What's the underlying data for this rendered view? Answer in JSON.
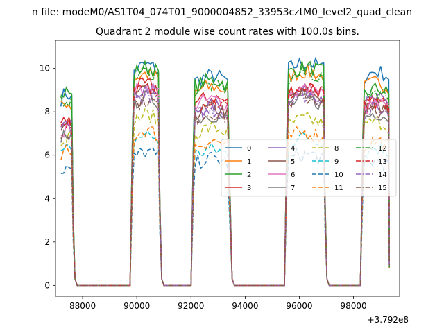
{
  "suptitle": "n file: modeM0/AS1T04_074T01_9000004852_33953cztM0_level2_quad_clean",
  "chart_data": {
    "type": "line",
    "title": "Quadrant 2 module wise count rates with 100.0s bins.",
    "xlabel": "",
    "ylabel": "",
    "x_offset_label": "+3.792e8",
    "xlim": [
      87000,
      99700
    ],
    "ylim": [
      -0.5,
      11.3
    ],
    "xticks": [
      88000,
      90000,
      92000,
      94000,
      96000,
      98000
    ],
    "yticks": [
      0,
      2,
      4,
      6,
      8,
      10
    ],
    "grid": false,
    "legend_placement": "center-right",
    "legend_columns": 4,
    "active_segments": [
      [
        87200,
        87600
      ],
      [
        89900,
        90800
      ],
      [
        92150,
        93400
      ],
      [
        95600,
        96900
      ],
      [
        98400,
        99300
      ]
    ],
    "segment_gap_end_value": 0,
    "series": [
      {
        "name": "0",
        "color": "#1f77b4",
        "dash": "solid",
        "levels": [
          8.8,
          10.1,
          9.6,
          10.2,
          9.8
        ]
      },
      {
        "name": "1",
        "color": "#ff7f0e",
        "dash": "solid",
        "levels": [
          8.4,
          9.7,
          9.1,
          9.8,
          9.3
        ]
      },
      {
        "name": "2",
        "color": "#2ca02c",
        "dash": "solid",
        "levels": [
          8.9,
          10.0,
          9.4,
          10.0,
          9.0
        ]
      },
      {
        "name": "3",
        "color": "#d62728",
        "dash": "solid",
        "levels": [
          7.6,
          9.2,
          8.6,
          9.1,
          8.4
        ]
      },
      {
        "name": "4",
        "color": "#9467bd",
        "dash": "solid",
        "levels": [
          7.8,
          9.0,
          8.2,
          8.9,
          8.5
        ]
      },
      {
        "name": "5",
        "color": "#8c564b",
        "dash": "solid",
        "levels": [
          7.4,
          8.9,
          8.1,
          8.8,
          8.2
        ]
      },
      {
        "name": "6",
        "color": "#e377c2",
        "dash": "solid",
        "levels": [
          7.2,
          9.1,
          8.5,
          9.0,
          8.3
        ]
      },
      {
        "name": "7",
        "color": "#7f7f7f",
        "dash": "solid",
        "levels": [
          7.0,
          8.6,
          7.8,
          8.5,
          7.9
        ]
      },
      {
        "name": "8",
        "color": "#bcbd22",
        "dash": "dashed",
        "levels": [
          6.9,
          7.8,
          7.2,
          7.6,
          7.5
        ]
      },
      {
        "name": "9",
        "color": "#17becf",
        "dash": "dashed",
        "levels": [
          6.2,
          6.9,
          6.2,
          6.8,
          6.3
        ]
      },
      {
        "name": "10",
        "color": "#1f77b4",
        "dash": "dashed",
        "levels": [
          5.4,
          6.1,
          5.8,
          6.0,
          5.7
        ]
      },
      {
        "name": "11",
        "color": "#ff7f0e",
        "dash": "dashed",
        "levels": [
          6.1,
          7.1,
          6.6,
          7.0,
          6.6
        ]
      },
      {
        "name": "12",
        "color": "#2ca02c",
        "dash": "dashdot",
        "levels": [
          8.6,
          9.8,
          9.2,
          9.7,
          8.9
        ]
      },
      {
        "name": "13",
        "color": "#d62728",
        "dash": "dashdot",
        "levels": [
          7.5,
          9.0,
          8.4,
          9.0,
          8.4
        ]
      },
      {
        "name": "14",
        "color": "#9467bd",
        "dash": "dashdot",
        "levels": [
          7.3,
          8.7,
          8.0,
          8.7,
          8.1
        ]
      },
      {
        "name": "15",
        "color": "#8c564b",
        "dash": "dashdot",
        "levels": [
          7.1,
          8.5,
          7.9,
          8.6,
          8.0
        ]
      }
    ]
  }
}
